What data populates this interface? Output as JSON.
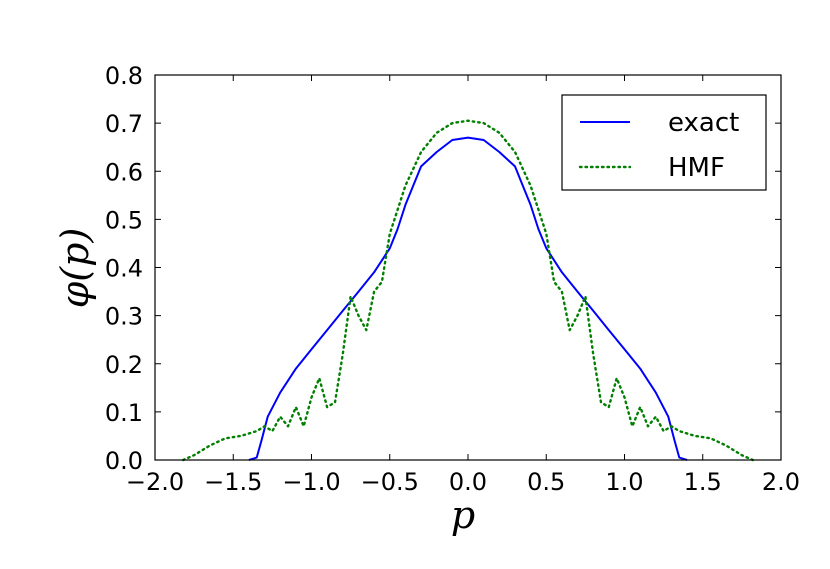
{
  "chart_data": {
    "type": "line",
    "title": "",
    "xlabel": "p",
    "ylabel": "φ(p)",
    "xlim": [
      -2.0,
      2.0
    ],
    "ylim": [
      0.0,
      0.8
    ],
    "grid": false,
    "legend_placement": "top-right",
    "x_ticks": [
      "−2.0",
      "−1.5",
      "−1.0",
      "−0.5",
      "0.0",
      "0.5",
      "1.0",
      "1.5",
      "2.0"
    ],
    "y_ticks": [
      "0.0",
      "0.1",
      "0.2",
      "0.3",
      "0.4",
      "0.5",
      "0.6",
      "0.7",
      "0.8"
    ],
    "series": [
      {
        "name": "exact",
        "color": "#0000ff",
        "style": "solid",
        "x": [
          -1.4,
          -1.35,
          -1.32,
          -1.28,
          -1.2,
          -1.1,
          -1.0,
          -0.9,
          -0.8,
          -0.7,
          -0.6,
          -0.5,
          -0.45,
          -0.4,
          -0.35,
          -0.3,
          -0.2,
          -0.1,
          0.0,
          0.1,
          0.2,
          0.3,
          0.35,
          0.4,
          0.45,
          0.5,
          0.6,
          0.7,
          0.8,
          0.9,
          1.0,
          1.1,
          1.2,
          1.28,
          1.32,
          1.35,
          1.4
        ],
        "y": [
          0.0,
          0.005,
          0.04,
          0.09,
          0.14,
          0.19,
          0.23,
          0.27,
          0.31,
          0.35,
          0.39,
          0.44,
          0.48,
          0.53,
          0.57,
          0.61,
          0.64,
          0.665,
          0.67,
          0.665,
          0.64,
          0.61,
          0.57,
          0.53,
          0.48,
          0.44,
          0.39,
          0.35,
          0.31,
          0.27,
          0.23,
          0.19,
          0.14,
          0.09,
          0.04,
          0.005,
          0.0
        ]
      },
      {
        "name": "HMF",
        "color": "#008000",
        "style": "dotted",
        "x": [
          -1.82,
          -1.75,
          -1.65,
          -1.55,
          -1.45,
          -1.35,
          -1.3,
          -1.25,
          -1.2,
          -1.15,
          -1.1,
          -1.05,
          -1.0,
          -0.95,
          -0.9,
          -0.85,
          -0.8,
          -0.75,
          -0.7,
          -0.65,
          -0.6,
          -0.55,
          -0.5,
          -0.4,
          -0.3,
          -0.2,
          -0.1,
          0.0,
          0.1,
          0.2,
          0.3,
          0.4,
          0.5,
          0.55,
          0.6,
          0.65,
          0.7,
          0.75,
          0.8,
          0.85,
          0.9,
          0.95,
          1.0,
          1.05,
          1.1,
          1.15,
          1.2,
          1.25,
          1.3,
          1.35,
          1.45,
          1.55,
          1.65,
          1.75,
          1.82
        ],
        "y": [
          0.0,
          0.01,
          0.03,
          0.045,
          0.05,
          0.06,
          0.07,
          0.06,
          0.09,
          0.07,
          0.11,
          0.07,
          0.13,
          0.17,
          0.11,
          0.12,
          0.22,
          0.34,
          0.3,
          0.27,
          0.35,
          0.37,
          0.47,
          0.57,
          0.64,
          0.68,
          0.7,
          0.705,
          0.7,
          0.68,
          0.64,
          0.57,
          0.47,
          0.37,
          0.35,
          0.27,
          0.3,
          0.34,
          0.22,
          0.12,
          0.11,
          0.17,
          0.13,
          0.07,
          0.11,
          0.07,
          0.09,
          0.06,
          0.07,
          0.06,
          0.05,
          0.045,
          0.03,
          0.01,
          0.0
        ]
      }
    ]
  }
}
